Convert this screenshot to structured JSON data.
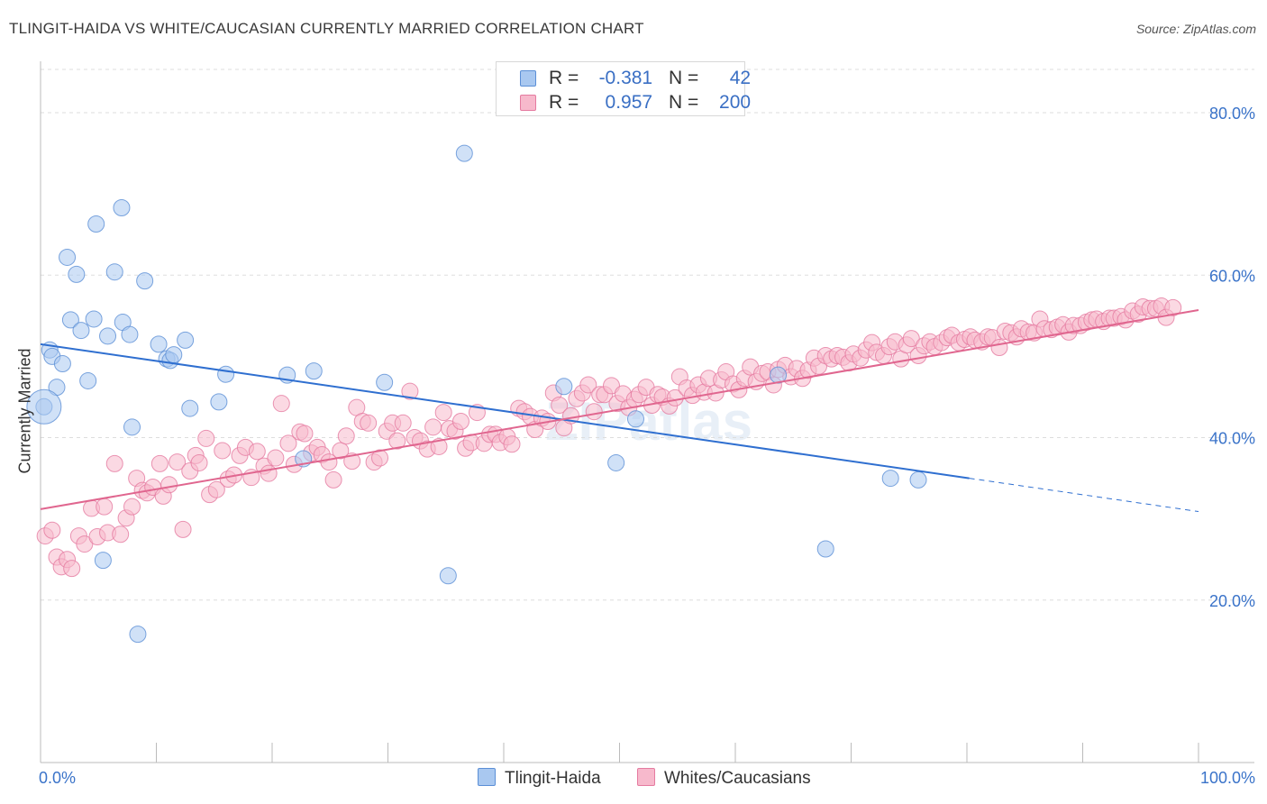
{
  "title": "TLINGIT-HAIDA VS WHITE/CAUCASIAN CURRENTLY MARRIED CORRELATION CHART",
  "source": "Source: ZipAtlas.com",
  "watermark": "ZIPatlas",
  "legend": {
    "rows": [
      {
        "r_label": "R =",
        "r_value": "-0.381",
        "n_label": "N =",
        "n_value": "42",
        "color": "#a9c8f0",
        "stroke": "#5b8fd6"
      },
      {
        "r_label": "R =",
        "r_value": "0.957",
        "n_label": "N =",
        "n_value": "200",
        "color": "#f7b9cc",
        "stroke": "#e57ba0"
      }
    ]
  },
  "bottom_legend": [
    {
      "label": "Tlingit-Haida",
      "color": "#a9c8f0",
      "stroke": "#5b8fd6"
    },
    {
      "label": "Whites/Caucasians",
      "color": "#f7b9cc",
      "stroke": "#e57ba0"
    }
  ],
  "chart_data": {
    "type": "scatter",
    "title": "TLINGIT-HAIDA VS WHITE/CAUCASIAN CURRENTLY MARRIED CORRELATION CHART",
    "xlabel": "",
    "ylabel": "Currently Married",
    "xlim": [
      0,
      100
    ],
    "ylim": [
      0,
      85
    ],
    "x_tick_labels": [
      "0.0%",
      "100.0%"
    ],
    "y_ticks": [
      20,
      40,
      60,
      80
    ],
    "y_tick_labels": [
      "20.0%",
      "40.0%",
      "60.0%",
      "80.0%"
    ],
    "grid": true,
    "legend_position": "top-center",
    "series": [
      {
        "name": "Tlingit-Haida",
        "color": "#a9c8f0",
        "stroke": "#5b8fd6",
        "line_color": "#2f6fd0",
        "points": [
          [
            0.3,
            43.8
          ],
          [
            0.8,
            50.8
          ],
          [
            1.0,
            50.0
          ],
          [
            1.4,
            46.2
          ],
          [
            1.9,
            49.1
          ],
          [
            2.3,
            62.2
          ],
          [
            2.6,
            54.5
          ],
          [
            3.1,
            60.1
          ],
          [
            3.5,
            53.2
          ],
          [
            4.1,
            47.0
          ],
          [
            4.6,
            54.6
          ],
          [
            4.8,
            66.3
          ],
          [
            5.4,
            24.9
          ],
          [
            5.8,
            52.5
          ],
          [
            6.4,
            60.4
          ],
          [
            7.0,
            68.3
          ],
          [
            7.1,
            54.2
          ],
          [
            7.7,
            52.7
          ],
          [
            7.9,
            41.3
          ],
          [
            8.4,
            15.8
          ],
          [
            9.0,
            59.3
          ],
          [
            10.2,
            51.5
          ],
          [
            10.9,
            49.7
          ],
          [
            11.2,
            49.5
          ],
          [
            11.5,
            50.2
          ],
          [
            12.5,
            52.0
          ],
          [
            12.9,
            43.6
          ],
          [
            15.4,
            44.4
          ],
          [
            16.0,
            47.8
          ],
          [
            21.3,
            47.7
          ],
          [
            22.7,
            37.4
          ],
          [
            23.6,
            48.2
          ],
          [
            29.7,
            46.8
          ],
          [
            35.2,
            23.0
          ],
          [
            36.6,
            75.0
          ],
          [
            45.2,
            46.3
          ],
          [
            49.7,
            36.9
          ],
          [
            51.4,
            42.3
          ],
          [
            63.7,
            47.7
          ],
          [
            67.8,
            26.3
          ],
          [
            73.4,
            35.0
          ],
          [
            75.8,
            34.8
          ]
        ],
        "trend": {
          "x1": 0,
          "y1": 51.5,
          "x2": 80.2,
          "y2": 35.0,
          "dash_x2": 100,
          "dash_y2": 30.9
        }
      },
      {
        "name": "Whites/Caucasians",
        "color": "#f7b9cc",
        "stroke": "#e57ba0",
        "line_color": "#e0668f",
        "points": [
          [
            0.4,
            27.9
          ],
          [
            1.0,
            28.6
          ],
          [
            1.4,
            25.3
          ],
          [
            1.8,
            24.1
          ],
          [
            2.3,
            25.0
          ],
          [
            2.7,
            23.9
          ],
          [
            3.3,
            27.9
          ],
          [
            3.8,
            26.9
          ],
          [
            4.4,
            31.3
          ],
          [
            4.9,
            27.8
          ],
          [
            5.5,
            31.5
          ],
          [
            5.8,
            28.3
          ],
          [
            6.4,
            36.8
          ],
          [
            6.9,
            28.1
          ],
          [
            7.4,
            30.1
          ],
          [
            7.9,
            31.5
          ],
          [
            8.3,
            35.0
          ],
          [
            8.8,
            33.5
          ],
          [
            9.2,
            33.2
          ],
          [
            9.7,
            33.9
          ],
          [
            10.3,
            36.8
          ],
          [
            10.6,
            32.8
          ],
          [
            11.1,
            34.2
          ],
          [
            11.8,
            37.0
          ],
          [
            12.3,
            28.7
          ],
          [
            12.9,
            35.9
          ],
          [
            13.4,
            37.8
          ],
          [
            13.7,
            36.9
          ],
          [
            14.3,
            39.9
          ],
          [
            14.6,
            33.0
          ],
          [
            15.2,
            33.6
          ],
          [
            15.7,
            38.4
          ],
          [
            16.2,
            34.9
          ],
          [
            16.7,
            35.4
          ],
          [
            17.2,
            37.8
          ],
          [
            17.7,
            38.8
          ],
          [
            18.2,
            35.1
          ],
          [
            18.7,
            38.3
          ],
          [
            19.3,
            36.5
          ],
          [
            19.7,
            35.6
          ],
          [
            20.3,
            37.5
          ],
          [
            20.8,
            44.2
          ],
          [
            21.4,
            39.3
          ],
          [
            21.9,
            36.7
          ],
          [
            22.4,
            40.7
          ],
          [
            22.8,
            40.5
          ],
          [
            23.4,
            38.1
          ],
          [
            23.9,
            38.8
          ],
          [
            24.3,
            37.9
          ],
          [
            24.9,
            37.0
          ],
          [
            25.3,
            34.8
          ],
          [
            25.9,
            38.4
          ],
          [
            26.4,
            40.2
          ],
          [
            26.9,
            37.1
          ],
          [
            27.3,
            43.7
          ],
          [
            27.8,
            42.0
          ],
          [
            28.3,
            41.8
          ],
          [
            28.8,
            37.0
          ],
          [
            29.3,
            37.5
          ],
          [
            29.9,
            40.8
          ],
          [
            30.4,
            41.8
          ],
          [
            30.8,
            39.6
          ],
          [
            31.3,
            41.8
          ],
          [
            31.9,
            45.7
          ],
          [
            32.3,
            40.0
          ],
          [
            32.8,
            39.6
          ],
          [
            33.4,
            38.6
          ],
          [
            33.9,
            41.3
          ],
          [
            34.4,
            38.9
          ],
          [
            34.8,
            43.1
          ],
          [
            35.3,
            41.1
          ],
          [
            35.8,
            40.8
          ],
          [
            36.3,
            42.0
          ],
          [
            36.7,
            38.7
          ],
          [
            37.2,
            39.4
          ],
          [
            37.7,
            43.1
          ],
          [
            38.3,
            39.3
          ],
          [
            38.8,
            40.4
          ],
          [
            39.3,
            40.4
          ],
          [
            39.7,
            39.4
          ],
          [
            40.3,
            40.1
          ],
          [
            40.7,
            39.2
          ],
          [
            41.3,
            43.6
          ],
          [
            41.8,
            43.2
          ],
          [
            42.3,
            42.6
          ],
          [
            42.7,
            41.0
          ],
          [
            43.3,
            42.4
          ],
          [
            43.8,
            42.0
          ],
          [
            44.3,
            45.5
          ],
          [
            44.8,
            44.0
          ],
          [
            45.2,
            41.2
          ],
          [
            45.8,
            42.7
          ],
          [
            46.3,
            44.8
          ],
          [
            46.8,
            45.5
          ],
          [
            47.3,
            46.5
          ],
          [
            47.8,
            43.2
          ],
          [
            48.3,
            45.3
          ],
          [
            48.7,
            45.3
          ],
          [
            49.3,
            46.4
          ],
          [
            49.8,
            44.2
          ],
          [
            50.3,
            45.4
          ],
          [
            50.8,
            43.7
          ],
          [
            51.3,
            44.7
          ],
          [
            51.7,
            45.3
          ],
          [
            52.3,
            46.2
          ],
          [
            52.8,
            44.0
          ],
          [
            53.3,
            45.3
          ],
          [
            53.7,
            45.0
          ],
          [
            54.3,
            43.9
          ],
          [
            54.8,
            44.9
          ],
          [
            55.2,
            47.5
          ],
          [
            55.8,
            46.1
          ],
          [
            56.3,
            45.2
          ],
          [
            56.8,
            46.5
          ],
          [
            57.3,
            45.6
          ],
          [
            57.7,
            47.3
          ],
          [
            58.3,
            45.5
          ],
          [
            58.8,
            47.1
          ],
          [
            59.2,
            48.1
          ],
          [
            59.8,
            46.6
          ],
          [
            60.3,
            45.9
          ],
          [
            60.8,
            47.3
          ],
          [
            61.3,
            48.7
          ],
          [
            61.8,
            46.9
          ],
          [
            62.3,
            47.9
          ],
          [
            62.8,
            48.1
          ],
          [
            63.3,
            46.5
          ],
          [
            63.7,
            48.4
          ],
          [
            64.3,
            48.9
          ],
          [
            64.8,
            47.5
          ],
          [
            65.3,
            48.5
          ],
          [
            65.8,
            47.3
          ],
          [
            66.3,
            48.3
          ],
          [
            66.8,
            49.8
          ],
          [
            67.2,
            48.8
          ],
          [
            67.8,
            50.1
          ],
          [
            68.3,
            49.7
          ],
          [
            68.8,
            50.1
          ],
          [
            69.3,
            49.9
          ],
          [
            69.8,
            49.2
          ],
          [
            70.2,
            50.3
          ],
          [
            70.8,
            49.8
          ],
          [
            71.3,
            50.8
          ],
          [
            71.8,
            51.7
          ],
          [
            72.2,
            50.5
          ],
          [
            72.8,
            50.1
          ],
          [
            73.3,
            51.2
          ],
          [
            73.8,
            51.8
          ],
          [
            74.3,
            49.7
          ],
          [
            74.8,
            51.4
          ],
          [
            75.2,
            52.2
          ],
          [
            75.8,
            50.1
          ],
          [
            76.3,
            51.3
          ],
          [
            76.8,
            51.8
          ],
          [
            77.2,
            51.2
          ],
          [
            77.8,
            51.7
          ],
          [
            78.3,
            52.3
          ],
          [
            78.7,
            52.6
          ],
          [
            79.3,
            51.7
          ],
          [
            79.8,
            52.1
          ],
          [
            80.3,
            52.4
          ],
          [
            80.7,
            52.0
          ],
          [
            81.3,
            51.8
          ],
          [
            81.8,
            52.4
          ],
          [
            82.2,
            52.3
          ],
          [
            82.8,
            51.1
          ],
          [
            83.3,
            53.1
          ],
          [
            83.8,
            52.9
          ],
          [
            84.3,
            52.4
          ],
          [
            84.7,
            53.4
          ],
          [
            85.3,
            53.0
          ],
          [
            85.8,
            52.9
          ],
          [
            86.3,
            54.6
          ],
          [
            86.7,
            53.4
          ],
          [
            87.3,
            53.3
          ],
          [
            87.8,
            53.6
          ],
          [
            88.3,
            53.9
          ],
          [
            88.8,
            53.0
          ],
          [
            89.2,
            53.8
          ],
          [
            89.8,
            53.8
          ],
          [
            90.3,
            54.2
          ],
          [
            90.8,
            54.5
          ],
          [
            91.2,
            54.6
          ],
          [
            91.8,
            54.3
          ],
          [
            92.3,
            54.7
          ],
          [
            92.7,
            54.7
          ],
          [
            93.3,
            54.9
          ],
          [
            93.7,
            54.5
          ],
          [
            94.3,
            55.6
          ],
          [
            94.8,
            55.2
          ],
          [
            95.2,
            56.1
          ],
          [
            95.8,
            55.9
          ],
          [
            96.3,
            55.9
          ],
          [
            96.8,
            56.2
          ],
          [
            97.2,
            54.8
          ],
          [
            97.8,
            56.0
          ]
        ],
        "trend": {
          "x1": 0,
          "y1": 31.2,
          "x2": 100,
          "y2": 55.7
        }
      }
    ]
  }
}
